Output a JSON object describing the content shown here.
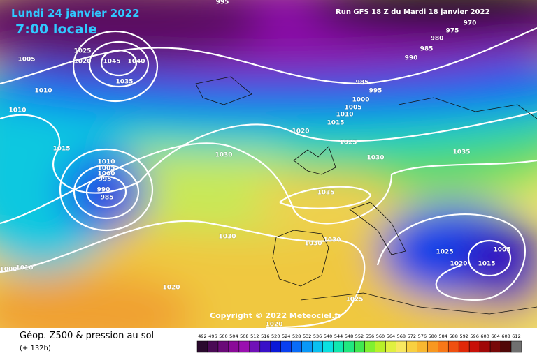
{
  "header": {
    "date": "Lundi 24 janvier 2022",
    "time": "7:00 locale",
    "run": "Run GFS 18 Z du Mardi 18 janvier 2022"
  },
  "isobar_labels": [
    "995",
    "970",
    "975",
    "980",
    "985",
    "990",
    "1005",
    "1025",
    "1020",
    "1045",
    "1040",
    "1035",
    "1010",
    "1010",
    "985",
    "995",
    "1000",
    "1005",
    "1010",
    "1015",
    "1020",
    "1025",
    "1015",
    "1030",
    "1030",
    "1035",
    "1010",
    "1005",
    "1000",
    "995",
    "990",
    "985",
    "1035",
    "1030",
    "1030",
    "1030",
    "1025",
    "1005",
    "1020",
    "1015",
    "1000",
    "1010",
    "1020",
    "1025",
    "1020"
  ],
  "copyright": "Copyright © 2022 Meteociel.fr",
  "footer": {
    "title": "Géop. Z500 & pression au sol",
    "lead": "(+ 132h)"
  },
  "scale": {
    "values": [
      "492",
      "496",
      "500",
      "504",
      "508",
      "512",
      "516",
      "520",
      "524",
      "528",
      "532",
      "536",
      "540",
      "544",
      "548",
      "552",
      "556",
      "560",
      "564",
      "568",
      "572",
      "576",
      "580",
      "584",
      "588",
      "592",
      "596",
      "600",
      "604",
      "608",
      "612"
    ],
    "colors": [
      "#2a0a2e",
      "#4a0a55",
      "#6a0a78",
      "#8a0a98",
      "#9a10b0",
      "#7010b8",
      "#3810c8",
      "#0a18d8",
      "#0a40f0",
      "#0a6cf8",
      "#0a98f8",
      "#0ac0f0",
      "#0ae0e0",
      "#10e8b0",
      "#20e880",
      "#40e850",
      "#80f030",
      "#b8f028",
      "#e0f040",
      "#f8e860",
      "#f8d040",
      "#f8b830",
      "#f89820",
      "#f87818",
      "#f05010",
      "#e02808",
      "#c81008",
      "#a00808",
      "#780808",
      "#500808",
      "#707070"
    ]
  }
}
